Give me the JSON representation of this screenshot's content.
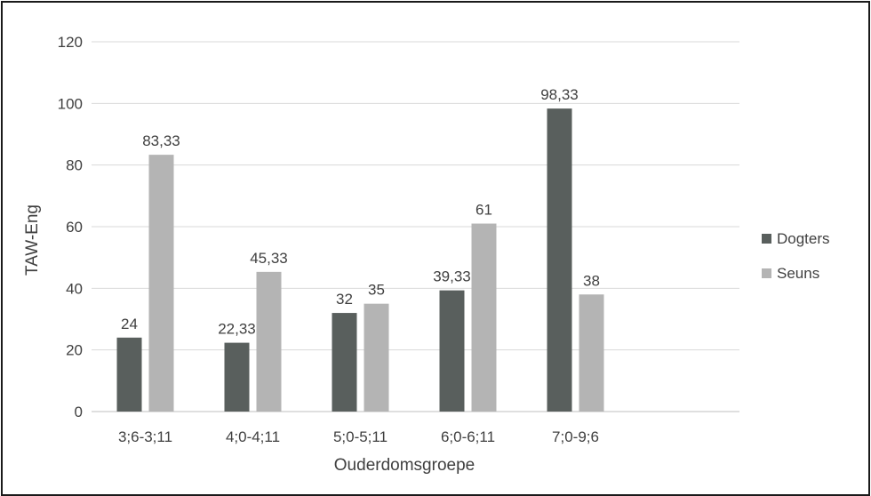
{
  "chart_data": {
    "type": "bar",
    "title": "",
    "xlabel": "Ouderdomsgroepe",
    "ylabel": "TAW-Eng",
    "categories": [
      "3;6-3;11",
      "4;0-4;11",
      "5;0-5;11",
      "6;0-6;11",
      "7;0-9;6"
    ],
    "series": [
      {
        "name": "Dogters",
        "values": [
          24,
          22.33,
          32,
          39.33,
          98.33
        ],
        "labels": [
          "24",
          "22,33",
          "32",
          "39,33",
          "98,33"
        ],
        "color": "#595f5d"
      },
      {
        "name": "Seuns",
        "values": [
          83.33,
          45.33,
          35,
          61,
          38
        ],
        "labels": [
          "83,33",
          "45,33",
          "35",
          "61",
          "38"
        ],
        "color": "#b4b4b4"
      }
    ],
    "ylim": [
      0,
      120
    ],
    "yticks": [
      0,
      20,
      40,
      60,
      80,
      100,
      120
    ],
    "grid": true,
    "legend": "right"
  }
}
